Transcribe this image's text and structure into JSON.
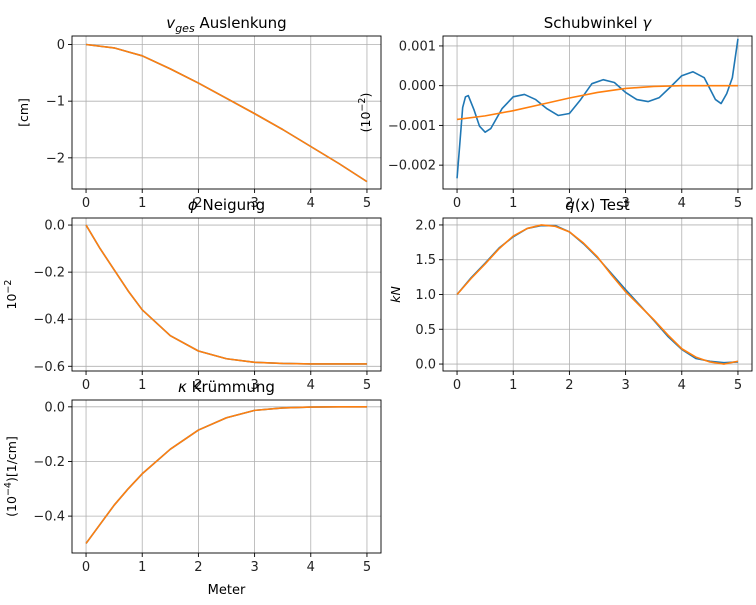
{
  "colors": {
    "series_blue": "#1f77b4",
    "series_orange": "#ff7f0e",
    "grid": "#b0b0b0",
    "axes": "#000000"
  },
  "chart_data": [
    {
      "id": "p1",
      "type": "line",
      "title": "v_ges Auslenkung",
      "title_parts": {
        "math": "v",
        "sub": "ges",
        "text": " Auslenkung"
      },
      "xlabel": "",
      "ylabel": "[cm]",
      "xlim": [
        -0.25,
        5.25
      ],
      "ylim": [
        -2.55,
        0.15
      ],
      "xticks": [
        0,
        1,
        2,
        3,
        4,
        5
      ],
      "yticks": [
        0,
        -1,
        -2
      ],
      "grid": true,
      "series": [
        {
          "color": "#1f77b4",
          "x": [
            0,
            0.5,
            1,
            1.5,
            2,
            2.5,
            3,
            3.5,
            4,
            4.5,
            5
          ],
          "y": [
            0,
            -0.06,
            -0.2,
            -0.43,
            -0.68,
            -0.95,
            -1.22,
            -1.5,
            -1.8,
            -2.1,
            -2.42
          ]
        },
        {
          "color": "#ff7f0e",
          "x": [
            0,
            0.5,
            1,
            1.5,
            2,
            2.5,
            3,
            3.5,
            4,
            4.5,
            5
          ],
          "y": [
            0,
            -0.06,
            -0.2,
            -0.43,
            -0.68,
            -0.95,
            -1.22,
            -1.5,
            -1.8,
            -2.1,
            -2.42
          ]
        }
      ]
    },
    {
      "id": "p2",
      "type": "line",
      "title": "Schubwinkel γ",
      "title_parts": {
        "text": "Schubwinkel ",
        "math": "γ"
      },
      "xlabel": "",
      "ylabel": "(10^-2)",
      "ylabel_parts": {
        "pre": "(10",
        "sup": "−2",
        "post": ")"
      },
      "xlim": [
        -0.25,
        5.25
      ],
      "ylim": [
        -0.0026,
        0.00125
      ],
      "xticks": [
        0,
        1,
        2,
        3,
        4,
        5
      ],
      "yticks": [
        0.001,
        0.0,
        -0.001,
        -0.002
      ],
      "ytick_labels": [
        "0.001",
        "0.000",
        "−0.001",
        "−0.002"
      ],
      "grid": true,
      "series": [
        {
          "color": "#1f77b4",
          "x": [
            0,
            0.05,
            0.1,
            0.15,
            0.2,
            0.3,
            0.4,
            0.5,
            0.6,
            0.8,
            1.0,
            1.2,
            1.4,
            1.6,
            1.8,
            2.0,
            2.2,
            2.4,
            2.6,
            2.8,
            3.0,
            3.2,
            3.4,
            3.6,
            3.8,
            4.0,
            4.2,
            4.4,
            4.6,
            4.7,
            4.8,
            4.9,
            5.0
          ],
          "y": [
            -0.00233,
            -0.00145,
            -0.00055,
            -0.00028,
            -0.00025,
            -0.0006,
            -0.00102,
            -0.00117,
            -0.00108,
            -0.00058,
            -0.00028,
            -0.00022,
            -0.00035,
            -0.00058,
            -0.00075,
            -0.0007,
            -0.00035,
            5e-05,
            0.00015,
            8e-05,
            -0.00017,
            -0.00035,
            -0.0004,
            -0.0003,
            -3e-05,
            0.00025,
            0.00035,
            0.0002,
            -0.00035,
            -0.00045,
            -0.0002,
            0.0002,
            0.00118
          ]
        },
        {
          "color": "#ff7f0e",
          "x": [
            0,
            0.5,
            1,
            1.5,
            2,
            2.5,
            3,
            3.5,
            4,
            4.5,
            5
          ],
          "y": [
            -0.00085,
            -0.00076,
            -0.00063,
            -0.00047,
            -0.00031,
            -0.00017,
            -7e-05,
            -2e-05,
            0.0,
            0.0,
            0.0
          ]
        }
      ]
    },
    {
      "id": "p3",
      "type": "line",
      "title": "ϕ Neigung",
      "title_parts": {
        "math": "ϕ",
        "text": " Neigung"
      },
      "xlabel": "",
      "ylabel": "10^-2",
      "ylabel_parts": {
        "pre": "10",
        "sup": "−2",
        "post": ""
      },
      "xlim": [
        -0.25,
        5.25
      ],
      "ylim": [
        -0.62,
        0.03
      ],
      "xticks": [
        0,
        1,
        2,
        3,
        4,
        5
      ],
      "yticks": [
        0.0,
        -0.2,
        -0.4,
        -0.6
      ],
      "ytick_labels": [
        "0.0",
        "−0.2",
        "−0.4",
        "−0.6"
      ],
      "grid": true,
      "series": [
        {
          "color": "#1f77b4",
          "x": [
            0,
            0.25,
            0.5,
            0.75,
            1,
            1.5,
            2,
            2.5,
            3,
            3.5,
            4,
            4.5,
            5
          ],
          "y": [
            0,
            -0.1,
            -0.19,
            -0.28,
            -0.36,
            -0.47,
            -0.535,
            -0.568,
            -0.583,
            -0.588,
            -0.59,
            -0.59,
            -0.59
          ]
        },
        {
          "color": "#ff7f0e",
          "x": [
            0,
            0.25,
            0.5,
            0.75,
            1,
            1.5,
            2,
            2.5,
            3,
            3.5,
            4,
            4.5,
            5
          ],
          "y": [
            0,
            -0.1,
            -0.19,
            -0.28,
            -0.36,
            -0.47,
            -0.535,
            -0.568,
            -0.583,
            -0.588,
            -0.59,
            -0.59,
            -0.59
          ]
        }
      ]
    },
    {
      "id": "p4",
      "type": "line",
      "title": "q(x) Test",
      "title_parts": {
        "math": "q",
        "text": "(x) Test"
      },
      "xlabel": "",
      "ylabel": "kN",
      "xlim": [
        -0.25,
        5.25
      ],
      "ylim": [
        -0.1,
        2.1
      ],
      "xticks": [
        0,
        1,
        2,
        3,
        4,
        5
      ],
      "yticks": [
        0.0,
        0.5,
        1.0,
        1.5,
        2.0
      ],
      "ytick_labels": [
        "0.0",
        "0.5",
        "1.0",
        "1.5",
        "2.0"
      ],
      "grid": true,
      "series": [
        {
          "color": "#1f77b4",
          "x": [
            0,
            0.25,
            0.5,
            0.75,
            1,
            1.25,
            1.5,
            1.75,
            2,
            2.25,
            2.5,
            2.75,
            3,
            3.25,
            3.5,
            3.75,
            4,
            4.25,
            4.5,
            4.75,
            5
          ],
          "y": [
            1.0,
            1.24,
            1.45,
            1.67,
            1.83,
            1.95,
            1.99,
            1.99,
            1.9,
            1.73,
            1.53,
            1.3,
            1.07,
            0.85,
            0.63,
            0.4,
            0.21,
            0.08,
            0.04,
            0.02,
            0.03
          ]
        },
        {
          "color": "#ff7f0e",
          "x": [
            0,
            0.25,
            0.5,
            0.75,
            1,
            1.25,
            1.5,
            1.75,
            2,
            2.25,
            2.5,
            2.75,
            3,
            3.25,
            3.5,
            3.75,
            4,
            4.25,
            4.5,
            4.75,
            5
          ],
          "y": [
            1.0,
            1.23,
            1.44,
            1.66,
            1.84,
            1.95,
            2.0,
            1.98,
            1.9,
            1.74,
            1.54,
            1.28,
            1.04,
            0.84,
            0.64,
            0.42,
            0.22,
            0.1,
            0.03,
            0.0,
            0.04
          ]
        }
      ]
    },
    {
      "id": "p5",
      "type": "line",
      "title": "κ Krümmung",
      "title_parts": {
        "math": "κ",
        "text": " Krümmung"
      },
      "xlabel": "Meter",
      "ylabel": "(10^-4)[1/cm]",
      "ylabel_parts": {
        "pre": "(10",
        "sup": "−4",
        "post": ")[1/cm]"
      },
      "xlim": [
        -0.25,
        5.25
      ],
      "ylim": [
        -0.535,
        0.025
      ],
      "xticks": [
        0,
        1,
        2,
        3,
        4,
        5
      ],
      "yticks": [
        0.0,
        -0.2,
        -0.4
      ],
      "ytick_labels": [
        "0.0",
        "−0.2",
        "−0.4"
      ],
      "grid": true,
      "series": [
        {
          "color": "#1f77b4",
          "x": [
            0,
            0.25,
            0.5,
            0.75,
            1,
            1.5,
            2,
            2.5,
            3,
            3.5,
            4,
            4.5,
            5
          ],
          "y": [
            -0.5,
            -0.43,
            -0.36,
            -0.3,
            -0.245,
            -0.155,
            -0.085,
            -0.04,
            -0.013,
            -0.004,
            -0.001,
            0,
            0
          ]
        },
        {
          "color": "#ff7f0e",
          "x": [
            0,
            0.25,
            0.5,
            0.75,
            1,
            1.5,
            2,
            2.5,
            3,
            3.5,
            4,
            4.5,
            5
          ],
          "y": [
            -0.5,
            -0.43,
            -0.36,
            -0.3,
            -0.245,
            -0.155,
            -0.085,
            -0.04,
            -0.013,
            -0.004,
            -0.001,
            0,
            0
          ]
        }
      ]
    }
  ]
}
